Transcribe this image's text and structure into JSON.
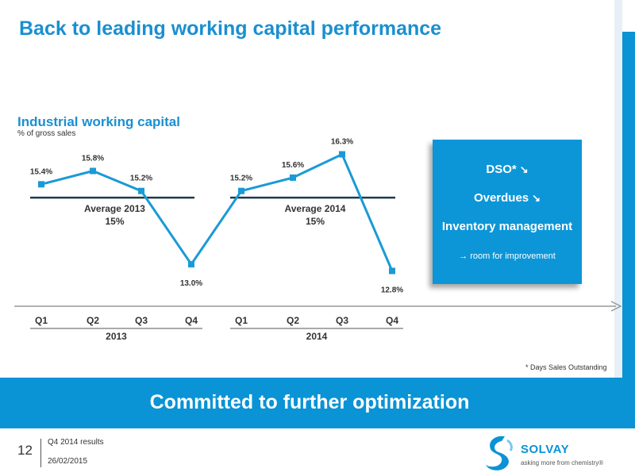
{
  "slide": {
    "title": "Back to leading working capital performance"
  },
  "chart_data": {
    "type": "line",
    "title": "Industrial working capital",
    "subtitle": "% of gross sales",
    "categories": [
      "Q1",
      "Q2",
      "Q3",
      "Q4",
      "Q1",
      "Q2",
      "Q3",
      "Q4"
    ],
    "groups": [
      {
        "label": "2013",
        "from": 0,
        "to": 3
      },
      {
        "label": "2014",
        "from": 4,
        "to": 7
      }
    ],
    "series": [
      {
        "values": [
          15.4,
          15.8,
          15.2,
          13.0,
          15.2,
          15.6,
          16.3,
          12.8
        ]
      }
    ],
    "data_labels": [
      "15.4%",
      "15.8%",
      "15.2%",
      "13.0%",
      "15.2%",
      "15.6%",
      "16.3%",
      "12.8%"
    ],
    "averages": [
      {
        "label": "Average 2013",
        "value_label": "15%",
        "value": 15,
        "from": 0,
        "to": 3
      },
      {
        "label": "Average 2014",
        "value_label": "15%",
        "value": 15,
        "from": 4,
        "to": 7
      }
    ],
    "ylim": [
      12,
      17
    ],
    "color": "#1a9ad6"
  },
  "side_box": {
    "dso": "DSO*",
    "overdues": "Overdues",
    "inventory": "Inventory management",
    "note": "→ room for improvement",
    "trend_icon": "down-right-arrow-icon"
  },
  "footnote": "*  Days Sales Outstanding",
  "banner": {
    "text": "Committed to further optimization"
  },
  "footer": {
    "page_number": "12",
    "line1": "Q4 2014 results",
    "line2": "26/02/2015",
    "logo_text": "SOLVAY",
    "logo_tagline": "asking more from chemistry®"
  },
  "colors": {
    "brand_blue": "#0a93d5",
    "title_blue": "#1a8fd0",
    "average_line": "#1e3a4a"
  }
}
